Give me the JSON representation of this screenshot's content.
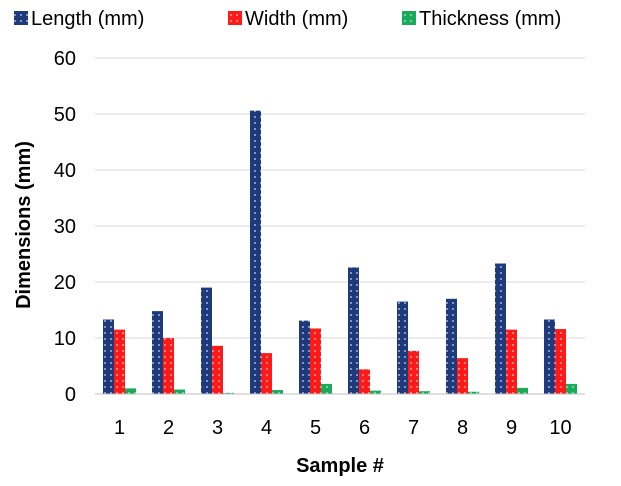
{
  "chart_data": {
    "type": "bar",
    "title": "",
    "xlabel": "Sample #",
    "ylabel": "Dimensions (mm)",
    "categories": [
      "1",
      "2",
      "3",
      "4",
      "5",
      "6",
      "7",
      "8",
      "9",
      "10"
    ],
    "ylim": [
      0,
      60
    ],
    "yticks": [
      "0",
      "10",
      "20",
      "30",
      "40",
      "50",
      "60"
    ],
    "grid": true,
    "legend_position": "top",
    "series": [
      {
        "name": "Length (mm)",
        "color": "#1f3a7a",
        "pattern": "dotted",
        "values": [
          13.3,
          14.8,
          19.0,
          50.6,
          13.1,
          22.6,
          16.5,
          17.0,
          23.3,
          13.3
        ]
      },
      {
        "name": "Width (mm)",
        "color": "#ff1a1a",
        "pattern": "dotted",
        "values": [
          11.5,
          10.0,
          8.6,
          7.3,
          11.7,
          4.4,
          7.7,
          6.4,
          11.5,
          11.6
        ]
      },
      {
        "name": "Thickness (mm)",
        "color": "#1aaa5a",
        "pattern": "dotted",
        "values": [
          1.0,
          0.8,
          0.2,
          0.7,
          1.8,
          0.6,
          0.5,
          0.4,
          1.1,
          1.8
        ]
      }
    ]
  }
}
